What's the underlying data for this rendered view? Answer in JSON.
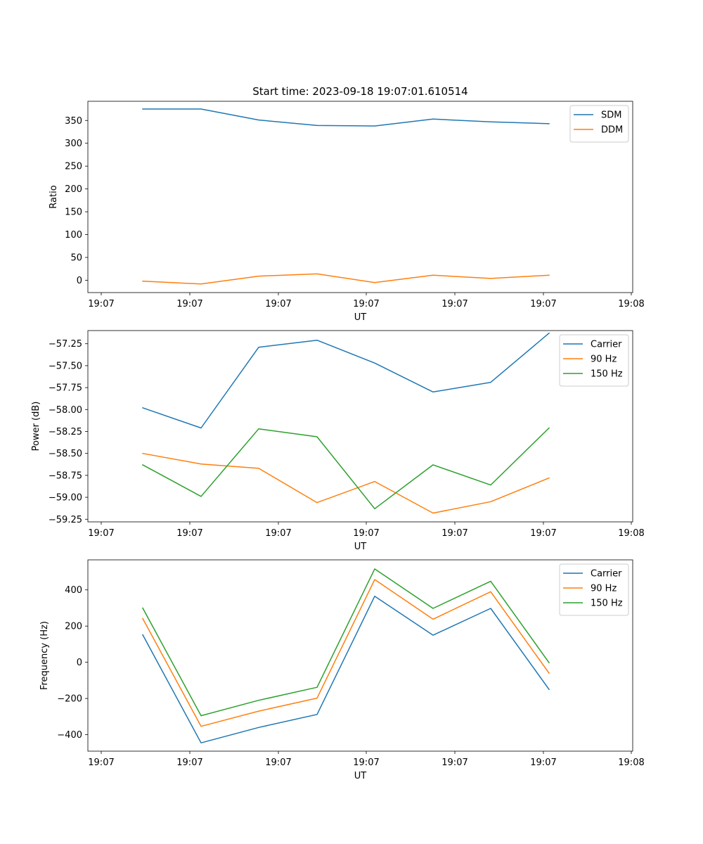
{
  "chart_data": [
    {
      "type": "line",
      "title": "Start time: 2023-09-18 19:07:01.610514",
      "xlabel": "UT",
      "ylabel": "Ratio",
      "xtick_labels": [
        "19:07",
        "19:07",
        "19:07",
        "19:07",
        "19:07",
        "19:07",
        "19:08"
      ],
      "ylim": [
        -27,
        392
      ],
      "yticks": [
        0,
        50,
        100,
        150,
        200,
        250,
        300,
        350
      ],
      "legend": "top-right",
      "x": [
        1,
        2,
        3,
        4,
        5,
        6,
        7,
        8
      ],
      "series": [
        {
          "name": "SDM",
          "color": "#1f77b4",
          "values": [
            375,
            375,
            351,
            339,
            338,
            353,
            347,
            343
          ]
        },
        {
          "name": "DDM",
          "color": "#ff7f0e",
          "values": [
            -2,
            -8,
            9,
            14,
            -5,
            11,
            4,
            11
          ]
        }
      ]
    },
    {
      "type": "line",
      "title": "",
      "xlabel": "UT",
      "ylabel": "Power (dB)",
      "xtick_labels": [
        "19:07",
        "19:07",
        "19:07",
        "19:07",
        "19:07",
        "19:07",
        "19:08"
      ],
      "ylim": [
        -59.28,
        -57.1
      ],
      "yticks": [
        -57.25,
        -57.5,
        -57.75,
        -58.0,
        -58.25,
        -58.5,
        -58.75,
        -59.0,
        -59.25
      ],
      "legend": "top-right",
      "x": [
        1,
        2,
        3,
        4,
        5,
        6,
        7,
        8
      ],
      "series": [
        {
          "name": "Carrier",
          "color": "#1f77b4",
          "values": [
            -57.98,
            -58.21,
            -57.29,
            -57.21,
            -57.47,
            -57.8,
            -57.69,
            -57.13
          ]
        },
        {
          "name": "90 Hz",
          "color": "#ff7f0e",
          "values": [
            -58.5,
            -58.62,
            -58.67,
            -59.06,
            -58.82,
            -59.18,
            -59.05,
            -58.78
          ]
        },
        {
          "name": "150 Hz",
          "color": "#2ca02c",
          "values": [
            -58.63,
            -58.99,
            -58.22,
            -58.31,
            -59.13,
            -58.63,
            -58.86,
            -58.21
          ]
        }
      ]
    },
    {
      "type": "line",
      "title": "",
      "xlabel": "UT",
      "ylabel": "Frequency (Hz)",
      "xtick_labels": [
        "19:07",
        "19:07",
        "19:07",
        "19:07",
        "19:07",
        "19:07",
        "19:08"
      ],
      "ylim": [
        -491,
        566
      ],
      "yticks": [
        -400,
        -200,
        0,
        200,
        400
      ],
      "legend": "top-right",
      "x": [
        1,
        2,
        3,
        4,
        5,
        6,
        7,
        8
      ],
      "series": [
        {
          "name": "Carrier",
          "color": "#1f77b4",
          "values": [
            152,
            -445,
            -360,
            -288,
            365,
            150,
            298,
            -150
          ]
        },
        {
          "name": "90 Hz",
          "color": "#ff7f0e",
          "values": [
            242,
            -354,
            -270,
            -198,
            457,
            238,
            390,
            -60
          ]
        },
        {
          "name": "150 Hz",
          "color": "#2ca02c",
          "values": [
            300,
            -295,
            -210,
            -138,
            516,
            298,
            448,
            -2
          ]
        }
      ]
    }
  ]
}
